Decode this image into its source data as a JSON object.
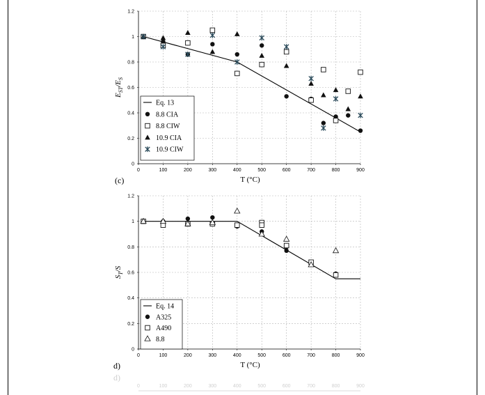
{
  "chart_data": [
    {
      "type": "scatter",
      "panel_label": "(c)",
      "xlabel": "T (°C)",
      "ylabel_main": "E",
      "ylabel_sub1": "ST",
      "ylabel_mid": "/E",
      "ylabel_sub2": "S",
      "xlim": [
        0,
        900
      ],
      "ylim": [
        0,
        1.2
      ],
      "xticks": [
        "0",
        "100",
        "200",
        "300",
        "400",
        "500",
        "600",
        "700",
        "800",
        "900"
      ],
      "yticks": [
        "0",
        "0.2",
        "0.4",
        "0.6",
        "0.8",
        "1",
        "1.2"
      ],
      "grid": true,
      "legend_position": "bottom-left",
      "series": [
        {
          "name": "Eq. 13",
          "marker": "line",
          "x": [
            20,
            400,
            900
          ],
          "y": [
            1.0,
            0.8,
            0.25
          ]
        },
        {
          "name": "8.8 CIA",
          "marker": "circle",
          "x": [
            20,
            100,
            200,
            300,
            400,
            500,
            600,
            700,
            750,
            800,
            850,
            900
          ],
          "y": [
            1.0,
            0.96,
            0.86,
            0.94,
            0.86,
            0.93,
            0.53,
            0.51,
            0.32,
            0.37,
            0.38,
            0.26
          ]
        },
        {
          "name": "8.8 CIW",
          "marker": "square",
          "x": [
            20,
            100,
            200,
            300,
            400,
            500,
            600,
            700,
            750,
            800,
            850,
            900
          ],
          "y": [
            1.0,
            0.93,
            0.95,
            1.05,
            0.71,
            0.78,
            0.88,
            0.5,
            0.74,
            0.34,
            0.57,
            0.72
          ]
        },
        {
          "name": "10.9 CIA",
          "marker": "triangle",
          "x": [
            20,
            100,
            200,
            300,
            400,
            500,
            600,
            700,
            750,
            800,
            850,
            900
          ],
          "y": [
            1.0,
            0.99,
            1.03,
            0.88,
            1.02,
            0.85,
            0.77,
            0.63,
            0.54,
            0.58,
            0.43,
            0.53
          ]
        },
        {
          "name": "10.9 CIW",
          "marker": "star",
          "x": [
            20,
            100,
            200,
            300,
            400,
            500,
            600,
            700,
            750,
            800,
            900
          ],
          "y": [
            1.0,
            0.92,
            0.86,
            1.01,
            0.8,
            0.99,
            0.92,
            0.67,
            0.28,
            0.51,
            0.38
          ]
        }
      ]
    },
    {
      "type": "scatter",
      "panel_label": "d)",
      "xlabel": "T (°C)",
      "ylabel_main": "S",
      "ylabel_sub1": "T",
      "ylabel_mid": "/S",
      "ylabel_sub2": "",
      "xlim": [
        0,
        900
      ],
      "ylim": [
        0,
        1.2
      ],
      "xticks": [
        "0",
        "100",
        "200",
        "300",
        "400",
        "500",
        "600",
        "700",
        "800",
        "900"
      ],
      "yticks": [
        "0",
        "0.2",
        "0.4",
        "0.6",
        "0.8",
        "1",
        "1.2"
      ],
      "grid": true,
      "legend_position": "bottom-left",
      "series": [
        {
          "name": "Eq. 14",
          "marker": "line",
          "x": [
            20,
            400,
            800,
            900
          ],
          "y": [
            1.0,
            1.0,
            0.55,
            0.55
          ]
        },
        {
          "name": "A325",
          "marker": "circle",
          "x": [
            20,
            100,
            200,
            300,
            400,
            500,
            600,
            600,
            700,
            800
          ],
          "y": [
            1.0,
            1.0,
            1.02,
            1.03,
            0.96,
            0.92,
            0.8,
            0.77,
            0.66,
            0.59
          ]
        },
        {
          "name": "A490",
          "marker": "square",
          "x": [
            20,
            100,
            200,
            300,
            400,
            500,
            500,
            600,
            700,
            800
          ],
          "y": [
            1.0,
            0.97,
            0.98,
            0.98,
            0.97,
            0.99,
            0.97,
            0.81,
            0.68,
            0.58
          ]
        },
        {
          "name": "8.8",
          "marker": "triangle-open",
          "x": [
            20,
            100,
            200,
            300,
            400,
            500,
            600,
            700,
            800
          ],
          "y": [
            1.0,
            1.0,
            0.98,
            0.99,
            1.08,
            0.9,
            0.86,
            0.66,
            0.77
          ]
        }
      ]
    }
  ],
  "ghost": {
    "panel_label": "d)",
    "ticks": [
      "0",
      "100",
      "200",
      "300",
      "400",
      "500",
      "600",
      "700",
      "800",
      "900"
    ]
  },
  "colors": {
    "marker": "#111111",
    "star_marker": "#2a4a5a",
    "grid": "#b5b5b5",
    "ghost": "#cfcfcf"
  }
}
